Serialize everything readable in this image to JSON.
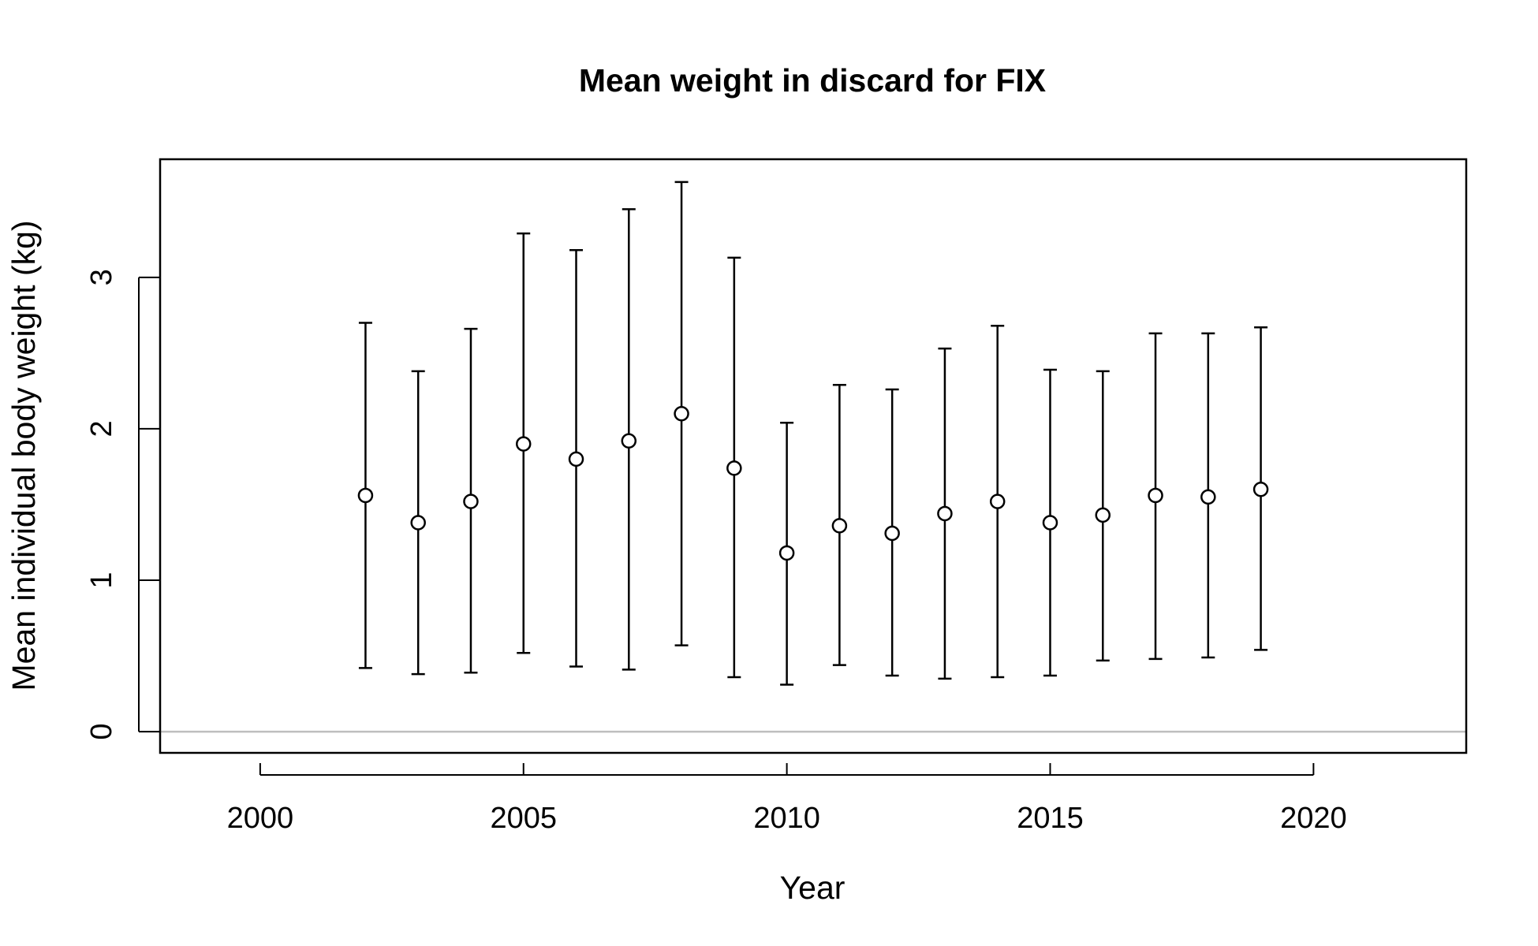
{
  "chart_data": {
    "type": "scatter",
    "title": "Mean weight in discard for FIX",
    "xlabel": "Year",
    "ylabel": "Mean individual body weight (kg)",
    "xlim": [
      1998.1,
      2022.9
    ],
    "ylim": [
      -0.14,
      3.78
    ],
    "x_ticks": [
      2000,
      2005,
      2010,
      2015,
      2020
    ],
    "y_ticks": [
      0,
      1,
      2,
      3
    ],
    "reference_line": {
      "y": 0,
      "color": "#bebebe"
    },
    "grid": false,
    "legend": "none",
    "series": [
      {
        "x": [
          2002,
          2003,
          2004,
          2005,
          2006,
          2007,
          2008,
          2009,
          2010,
          2011,
          2012,
          2013,
          2014,
          2015,
          2016,
          2017,
          2018,
          2019
        ],
        "y": [
          1.56,
          1.38,
          1.52,
          1.9,
          1.8,
          1.92,
          2.1,
          1.74,
          1.18,
          1.36,
          1.31,
          1.44,
          1.52,
          1.38,
          1.43,
          1.56,
          1.55,
          1.6
        ],
        "lower": [
          0.42,
          0.38,
          0.39,
          0.52,
          0.43,
          0.41,
          0.57,
          0.36,
          0.31,
          0.44,
          0.37,
          0.35,
          0.36,
          0.37,
          0.47,
          0.48,
          0.49,
          0.54
        ],
        "upper": [
          2.7,
          2.38,
          2.66,
          3.29,
          3.18,
          3.45,
          3.63,
          3.13,
          2.04,
          2.29,
          2.26,
          2.53,
          2.68,
          2.39,
          2.38,
          2.63,
          2.63,
          2.67
        ]
      }
    ]
  }
}
